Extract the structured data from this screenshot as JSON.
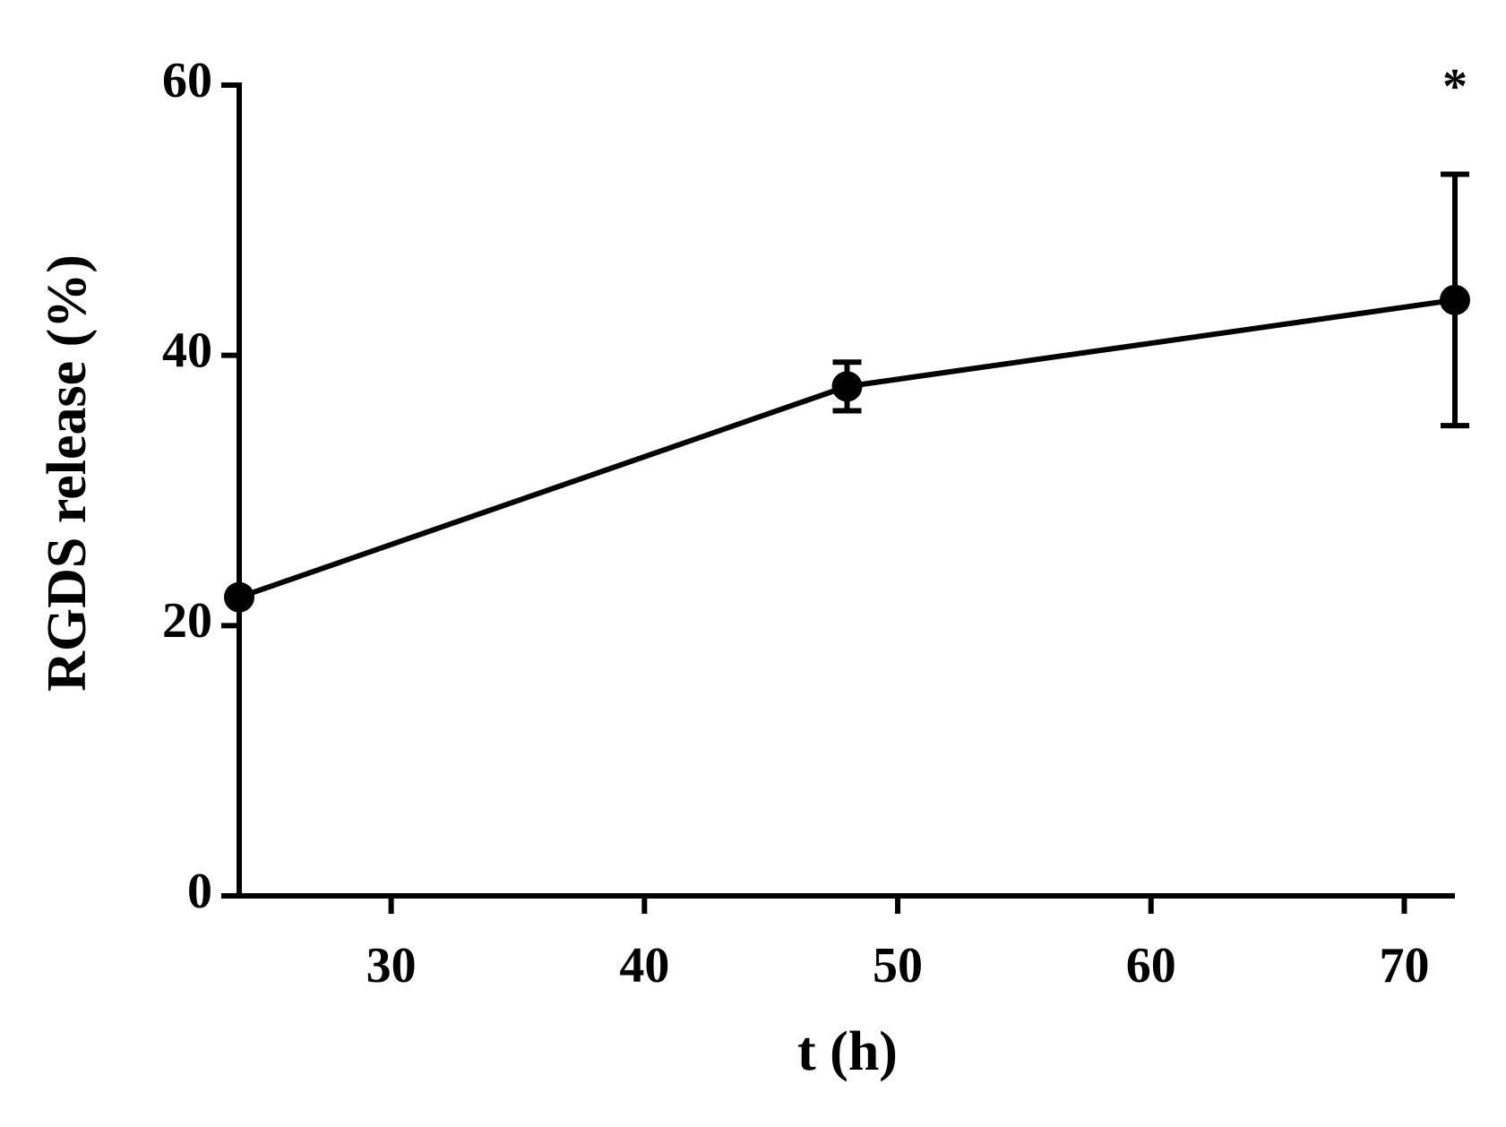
{
  "chart_data": {
    "type": "line",
    "x_label": "t (h)",
    "y_label": "RGDS release (%)",
    "x": [
      24,
      48,
      72
    ],
    "values": [
      22.1,
      37.7,
      44.1
    ],
    "errors": [
      null,
      1.8,
      9.3
    ],
    "color": "#000000",
    "xlim": [
      24,
      72
    ],
    "xticks": [
      30,
      40,
      50,
      60,
      70
    ],
    "ylim": [
      0,
      60
    ],
    "yticks": [
      0,
      20,
      40,
      60
    ],
    "annotation": "*"
  }
}
